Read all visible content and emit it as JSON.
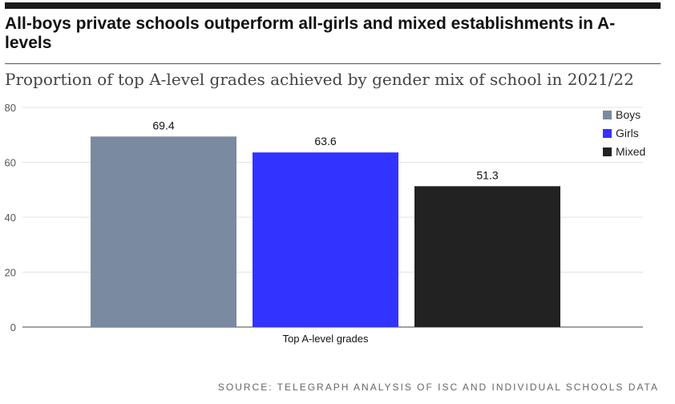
{
  "headline": "All-boys private schools outperform all-girls and mixed establishments in A-levels",
  "source": "SOURCE: TELEGRAPH ANALYSIS OF ISC AND INDIVIDUAL SCHOOLS DATA",
  "chart_data": {
    "type": "bar",
    "title": "Proportion of top A-level grades achieved by gender mix of school in 2021/22",
    "xlabel": "",
    "ylabel": "",
    "categories": [
      "Top A-level grades"
    ],
    "series": [
      {
        "name": "Boys",
        "values": [
          69.4
        ],
        "color": "#7a8aa0"
      },
      {
        "name": "Girls",
        "values": [
          63.6
        ],
        "color": "#3333ff"
      },
      {
        "name": "Mixed",
        "values": [
          51.3
        ],
        "color": "#222222"
      }
    ],
    "ylim": [
      0,
      80
    ],
    "yticks": [
      0,
      20,
      40,
      60,
      80
    ],
    "data_labels": true,
    "grid": true,
    "legend": "top-right"
  }
}
